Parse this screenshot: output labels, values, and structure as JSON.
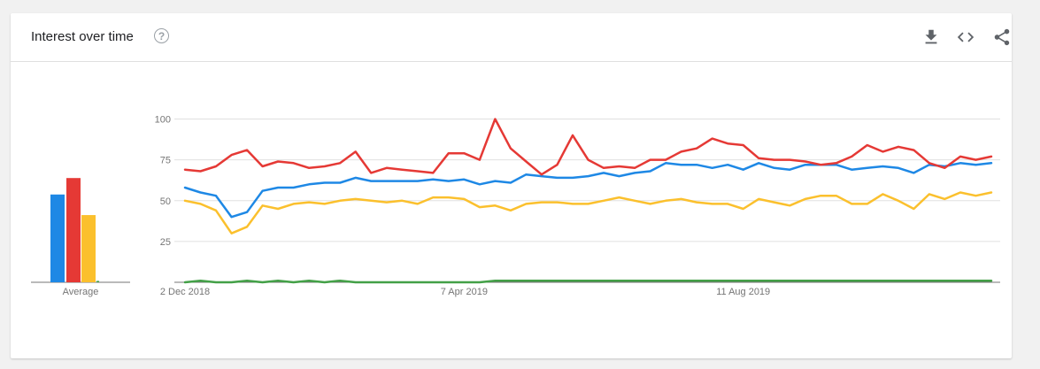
{
  "card": {
    "title": "Interest over time",
    "help_icon": "help-circle-icon",
    "actions": [
      "download-icon",
      "embed-code-icon",
      "share-icon"
    ]
  },
  "colors": {
    "blue": "#1e88e5",
    "red": "#e53935",
    "yellow": "#fbc02d",
    "green": "#43a047",
    "grid": "#e0e0e0",
    "axis": "#757575"
  },
  "chart_data": [
    {
      "type": "bar",
      "title": "",
      "categories": [
        "Average"
      ],
      "series": [
        {
          "color": "#1e88e5",
          "values": [
            64
          ]
        },
        {
          "color": "#e53935",
          "values": [
            76
          ]
        },
        {
          "color": "#fbc02d",
          "values": [
            49
          ]
        },
        {
          "color": "#43a047",
          "values": [
            1
          ]
        }
      ],
      "ylim": [
        0,
        100
      ]
    },
    {
      "type": "line",
      "title": "",
      "xlabel": "",
      "ylabel": "",
      "ylim": [
        0,
        100
      ],
      "yticks": [
        25,
        50,
        75,
        100
      ],
      "grid": true,
      "x_tick_labels": [
        "2 Dec 2018",
        "7 Apr 2019",
        "11 Aug 2019"
      ],
      "x_tick_indices": [
        0,
        18,
        36
      ],
      "x": [
        "2018-12-02",
        "2018-12-09",
        "2018-12-16",
        "2018-12-23",
        "2018-12-30",
        "2019-01-06",
        "2019-01-13",
        "2019-01-20",
        "2019-01-27",
        "2019-02-03",
        "2019-02-10",
        "2019-02-17",
        "2019-02-24",
        "2019-03-03",
        "2019-03-10",
        "2019-03-17",
        "2019-03-24",
        "2019-03-31",
        "2019-04-07",
        "2019-04-14",
        "2019-04-21",
        "2019-04-28",
        "2019-05-05",
        "2019-05-12",
        "2019-05-19",
        "2019-05-26",
        "2019-06-02",
        "2019-06-09",
        "2019-06-16",
        "2019-06-23",
        "2019-06-30",
        "2019-07-07",
        "2019-07-14",
        "2019-07-21",
        "2019-07-28",
        "2019-08-04",
        "2019-08-11",
        "2019-08-18",
        "2019-08-25",
        "2019-09-01",
        "2019-09-08",
        "2019-09-15",
        "2019-09-22",
        "2019-09-29",
        "2019-10-06",
        "2019-10-13",
        "2019-10-20",
        "2019-10-27",
        "2019-11-03",
        "2019-11-10",
        "2019-11-17",
        "2019-11-24",
        "2019-12-01"
      ],
      "series": [
        {
          "color": "#1e88e5",
          "values": [
            58,
            55,
            53,
            40,
            43,
            56,
            58,
            58,
            60,
            61,
            61,
            64,
            62,
            62,
            62,
            62,
            63,
            62,
            63,
            60,
            62,
            61,
            66,
            65,
            64,
            64,
            65,
            67,
            65,
            67,
            68,
            73,
            72,
            72,
            70,
            72,
            69,
            73,
            70,
            69,
            72,
            72,
            72,
            69,
            70,
            71,
            70,
            67,
            72,
            71,
            73,
            72,
            73
          ]
        },
        {
          "color": "#e53935",
          "values": [
            69,
            68,
            71,
            78,
            81,
            71,
            74,
            73,
            70,
            71,
            73,
            80,
            67,
            70,
            69,
            68,
            67,
            79,
            79,
            75,
            100,
            82,
            74,
            66,
            72,
            90,
            75,
            70,
            71,
            70,
            75,
            75,
            80,
            82,
            88,
            85,
            84,
            76,
            75,
            75,
            74,
            72,
            73,
            77,
            84,
            80,
            83,
            81,
            73,
            70,
            77,
            75,
            77
          ]
        },
        {
          "color": "#fbc02d",
          "values": [
            50,
            48,
            44,
            30,
            34,
            47,
            45,
            48,
            49,
            48,
            50,
            51,
            50,
            49,
            50,
            48,
            52,
            52,
            51,
            46,
            47,
            44,
            48,
            49,
            49,
            48,
            48,
            50,
            52,
            50,
            48,
            50,
            51,
            49,
            48,
            48,
            45,
            51,
            49,
            47,
            51,
            53,
            53,
            48,
            48,
            54,
            50,
            45,
            54,
            51,
            55,
            53,
            55
          ]
        },
        {
          "color": "#43a047",
          "values": [
            0,
            1,
            0,
            0,
            1,
            0,
            1,
            0,
            1,
            0,
            1,
            0,
            0,
            0,
            0,
            0,
            0,
            0,
            0,
            0,
            1,
            1,
            1,
            1,
            1,
            1,
            1,
            1,
            1,
            1,
            1,
            1,
            1,
            1,
            1,
            1,
            1,
            1,
            1,
            1,
            1,
            1,
            1,
            1,
            1,
            1,
            1,
            1,
            1,
            1,
            1,
            1,
            1
          ]
        }
      ]
    }
  ]
}
